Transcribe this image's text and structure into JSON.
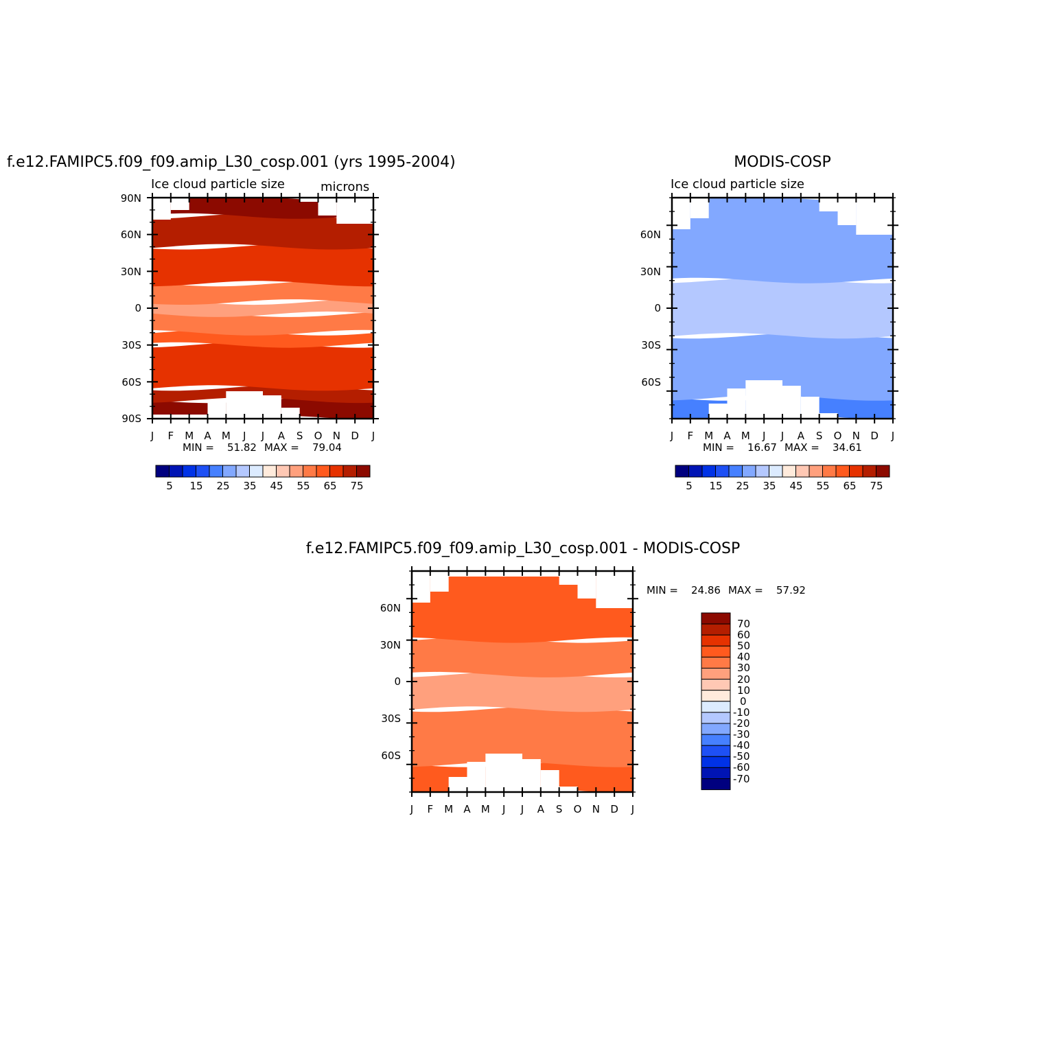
{
  "colors": {
    "abs_scale": [
      "#00007f",
      "#0014b4",
      "#0032e6",
      "#1e50f5",
      "#4680ff",
      "#82a8ff",
      "#b4c8ff",
      "#dcebff",
      "#ffebdc",
      "#ffc8b4",
      "#ffa07d",
      "#ff7a46",
      "#ff5a1e",
      "#e63200",
      "#b41e00",
      "#8c0a00"
    ],
    "diff_scale": [
      "#00007f",
      "#0014b4",
      "#0032e6",
      "#1e50f5",
      "#4680ff",
      "#82a8ff",
      "#b4c8ff",
      "#dcebff",
      "#ffebdc",
      "#ffc8b4",
      "#ffa07d",
      "#ff7a46",
      "#ff5a1e",
      "#e63200",
      "#b41e00",
      "#8c0a00"
    ]
  },
  "months": [
    "J",
    "F",
    "M",
    "A",
    "M",
    "J",
    "J",
    "A",
    "S",
    "O",
    "N",
    "D",
    "J"
  ],
  "panels": [
    {
      "id": "model",
      "title": "f.e12.FAMIPC5.f09_f09.amip_L30_cosp.001 (yrs 1995-2004)",
      "subtitle": "Ice cloud particle size",
      "units": "microns",
      "lat_labels": [
        "90N",
        "60N",
        "30N",
        "0",
        "30S",
        "60S",
        "90S"
      ],
      "min_label": "MIN =",
      "min_value": "51.82",
      "max_label": "MAX =",
      "max_value": "79.04",
      "colorbar_labels": [
        "5",
        "15",
        "25",
        "35",
        "45",
        "55",
        "65",
        "75"
      ]
    },
    {
      "id": "obs",
      "title": "MODIS-COSP",
      "subtitle": "Ice cloud particle size",
      "units": "",
      "lat_labels": [
        "",
        "60N",
        "30N",
        "0",
        "30S",
        "60S",
        ""
      ],
      "min_label": "MIN =",
      "min_value": "16.67",
      "max_label": "MAX =",
      "max_value": "34.61",
      "colorbar_labels": [
        "5",
        "15",
        "25",
        "35",
        "45",
        "55",
        "65",
        "75"
      ]
    },
    {
      "id": "diff",
      "title": "f.e12.FAMIPC5.f09_f09.amip_L30_cosp.001 - MODIS-COSP",
      "subtitle": "",
      "units": "",
      "lat_labels": [
        "",
        "60N",
        "30N",
        "0",
        "30S",
        "60S",
        ""
      ],
      "min_label": "MIN =",
      "min_value": "24.86",
      "max_label": "MAX =",
      "max_value": "57.92",
      "colorbar_labels": [
        "70",
        "60",
        "50",
        "40",
        "30",
        "20",
        "10",
        "0",
        "-10",
        "-20",
        "-30",
        "-40",
        "-50",
        "-60",
        "-70"
      ]
    }
  ],
  "chart_data": [
    {
      "type": "heatmap",
      "title": "f.e12.FAMIPC5.f09_f09.amip_L30_cosp.001 (yrs 1995-2004)",
      "subtitle": "Ice cloud particle size",
      "units": "microns",
      "x": [
        "J",
        "F",
        "M",
        "A",
        "M",
        "J",
        "J",
        "A",
        "S",
        "O",
        "N",
        "D",
        "J"
      ],
      "y": [
        "90S",
        "60S",
        "30S",
        "0",
        "30N",
        "60N",
        "90N"
      ],
      "xlabel": "",
      "ylabel": "",
      "min": 51.82,
      "max": 79.04,
      "levels": [
        5,
        10,
        15,
        20,
        25,
        30,
        35,
        40,
        45,
        50,
        55,
        60,
        65,
        70,
        75
      ],
      "description_levels": "contour fill 5 to 75 step 5",
      "bands": [
        {
          "lat_range": [
            -90,
            -75
          ],
          "value": 78
        },
        {
          "lat_range": [
            -75,
            -65
          ],
          "value": 73
        },
        {
          "lat_range": [
            -65,
            -30
          ],
          "value": 67
        },
        {
          "lat_range": [
            -30,
            -20
          ],
          "value": 62
        },
        {
          "lat_range": [
            -20,
            -5
          ],
          "value": 57
        },
        {
          "lat_range": [
            -5,
            5
          ],
          "value": 53
        },
        {
          "lat_range": [
            5,
            20
          ],
          "value": 58
        },
        {
          "lat_range": [
            20,
            50
          ],
          "value": 68
        },
        {
          "lat_range": [
            50,
            75
          ],
          "value": 72
        },
        {
          "lat_range": [
            75,
            90
          ],
          "value": 78
        }
      ]
    },
    {
      "type": "heatmap",
      "title": "MODIS-COSP",
      "subtitle": "Ice cloud particle size",
      "x": [
        "J",
        "F",
        "M",
        "A",
        "M",
        "J",
        "J",
        "A",
        "S",
        "O",
        "N",
        "D",
        "J"
      ],
      "y": [
        "60S",
        "30S",
        "0",
        "30N",
        "60N"
      ],
      "min": 16.67,
      "max": 34.61,
      "levels": [
        5,
        10,
        15,
        20,
        25,
        30,
        35,
        40,
        45,
        50,
        55,
        60,
        65,
        70,
        75
      ],
      "bands": [
        {
          "lat_range": [
            -80,
            -65
          ],
          "value": 22
        },
        {
          "lat_range": [
            -65,
            -20
          ],
          "value": 27
        },
        {
          "lat_range": [
            -20,
            20
          ],
          "value": 32
        },
        {
          "lat_range": [
            20,
            80
          ],
          "value": 27
        }
      ]
    },
    {
      "type": "heatmap",
      "title": "f.e12.FAMIPC5.f09_f09.amip_L30_cosp.001 - MODIS-COSP",
      "x": [
        "J",
        "F",
        "M",
        "A",
        "M",
        "J",
        "J",
        "A",
        "S",
        "O",
        "N",
        "D",
        "J"
      ],
      "y": [
        "60S",
        "30S",
        "0",
        "30N",
        "60N"
      ],
      "min": 24.86,
      "max": 57.92,
      "levels": [
        -70,
        -60,
        -50,
        -40,
        -30,
        -20,
        -10,
        0,
        10,
        20,
        30,
        40,
        50,
        60,
        70
      ],
      "bands": [
        {
          "lat_range": [
            -80,
            -60
          ],
          "value": 45
        },
        {
          "lat_range": [
            -60,
            -20
          ],
          "value": 37
        },
        {
          "lat_range": [
            -20,
            5
          ],
          "value": 27
        },
        {
          "lat_range": [
            5,
            30
          ],
          "value": 35
        },
        {
          "lat_range": [
            30,
            80
          ],
          "value": 45
        }
      ]
    }
  ]
}
